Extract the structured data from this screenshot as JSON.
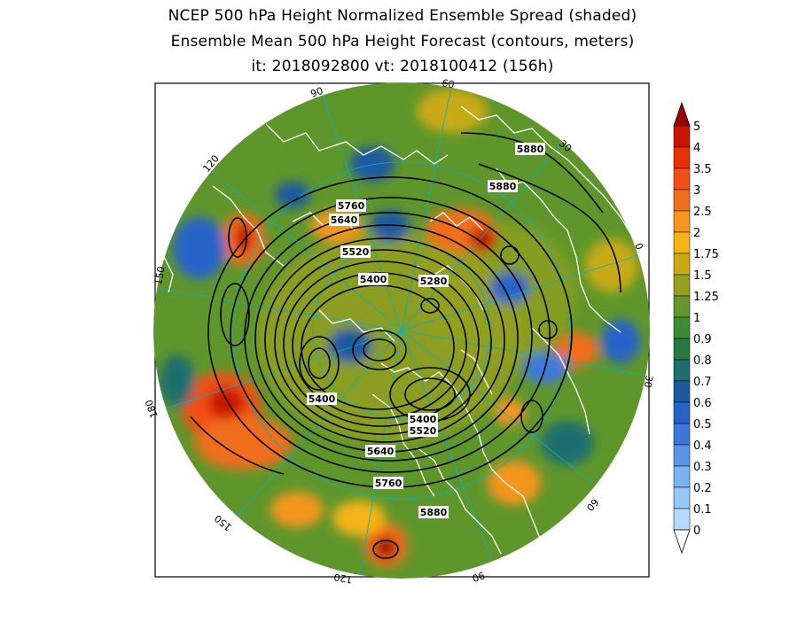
{
  "title": {
    "line1": "NCEP 500 hPa Height Normalized Ensemble Spread (shaded)",
    "line2": "Ensemble Mean 500 hPa Height Forecast (contours, meters)",
    "line3": "it: 2018092800     vt: 2018100412 (156h)"
  },
  "longitude_labels": [
    "90",
    "60",
    "30",
    "0",
    "30",
    "60",
    "90",
    "120",
    "150",
    "180",
    "150",
    "120"
  ],
  "contour_labels": [
    "5880",
    "5880",
    "5760",
    "5640",
    "5520",
    "5400",
    "5280",
    "5400",
    "5400",
    "5520",
    "5640",
    "5760",
    "5880"
  ],
  "colorbar": {
    "ticks": [
      "5",
      "4",
      "3.5",
      "3",
      "2.5",
      "2",
      "1.75",
      "1.5",
      "1.25",
      "1",
      "0.9",
      "0.8",
      "0.7",
      "0.6",
      "0.5",
      "0.4",
      "0.3",
      "0.2",
      "0.1",
      "0"
    ],
    "colors": [
      "#9c0000",
      "#c81400",
      "#e63200",
      "#f05014",
      "#f06e1e",
      "#f5961e",
      "#f5b414",
      "#c8aa14",
      "#96a01e",
      "#64962d",
      "#3c8c32",
      "#287846",
      "#1e6e6e",
      "#1e5aa0",
      "#2864c8",
      "#3c78dc",
      "#5a96e6",
      "#78b4f0",
      "#96c8f5",
      "#b4dcfa"
    ]
  },
  "colors": {
    "map_base": "#5f962b",
    "coastline": "#ffffff",
    "grid": "#00b4c8",
    "contour": "#000000"
  }
}
